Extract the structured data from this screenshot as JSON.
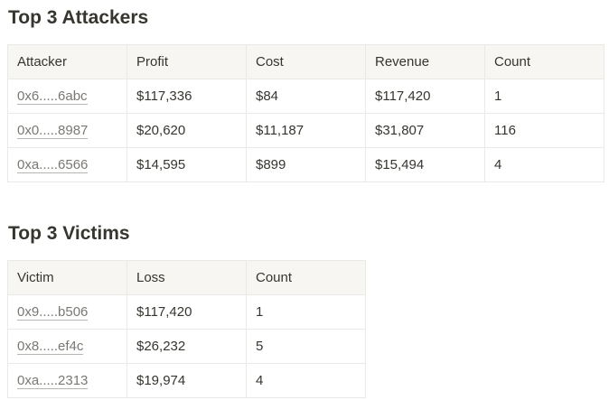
{
  "attackers": {
    "title": "Top 3 Attackers",
    "columns": [
      "Attacker",
      "Profit",
      "Cost",
      "Revenue",
      "Count"
    ],
    "rows": [
      {
        "address": "0x6.....6abc",
        "profit": "$117,336",
        "cost": "$84",
        "revenue": "$117,420",
        "count": "1"
      },
      {
        "address": "0x0.....8987",
        "profit": "$20,620",
        "cost": "$11,187",
        "revenue": "$31,807",
        "count": "116"
      },
      {
        "address": "0xa.....6566",
        "profit": "$14,595",
        "cost": "$899",
        "revenue": "$15,494",
        "count": "4"
      }
    ]
  },
  "victims": {
    "title": "Top 3 Victims",
    "columns": [
      "Victim",
      "Loss",
      "Count"
    ],
    "rows": [
      {
        "address": "0x9.....b506",
        "loss": "$117,420",
        "count": "1"
      },
      {
        "address": "0x8.....ef4c",
        "loss": "$26,232",
        "count": "5"
      },
      {
        "address": "0xa.....2313",
        "loss": "$19,974",
        "count": "4"
      }
    ]
  }
}
